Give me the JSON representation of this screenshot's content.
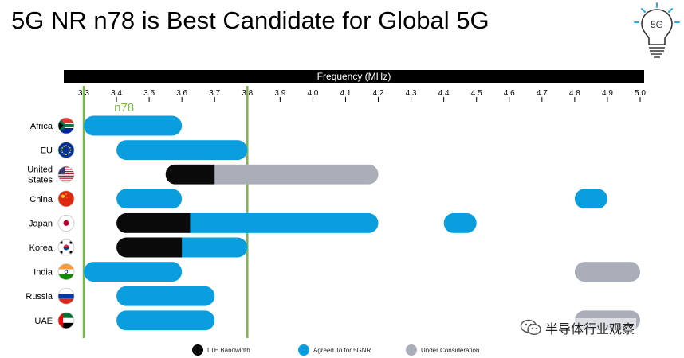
{
  "page_title": "5G NR n78 is Best Candidate for Global 5G",
  "logo_text": "5G",
  "watermark_text": "半导体行业观察",
  "colors": {
    "lte": "#0a0a0a",
    "agreed": "#0a9ede",
    "consideration": "#a9aeb9",
    "n78_line": "#7ab648",
    "axis_bar": "#000000",
    "logo_blue": "#29a9e0"
  },
  "chart_data": {
    "type": "bar",
    "orientation": "horizontal-ranges",
    "title": "",
    "axis_label": "Frequency (MHz)",
    "xlim": [
      3.3,
      5.0
    ],
    "ticks": [
      3.3,
      3.4,
      3.5,
      3.6,
      3.7,
      3.8,
      3.9,
      4.0,
      4.1,
      4.2,
      4.3,
      4.4,
      4.5,
      4.6,
      4.7,
      4.8,
      4.9,
      5.0
    ],
    "tick_labels": [
      "3.3",
      "3.4",
      "3.5",
      "3.6",
      "3.7",
      "3.8",
      "3.9",
      "4.0",
      "4.1",
      "4.2",
      "4.3",
      "4.4",
      "4.5",
      "4.6",
      "4.7",
      "4.8",
      "4.9",
      "5.0"
    ],
    "band_marker": {
      "label": "n78",
      "start": 3.3,
      "end": 3.8
    },
    "legend": [
      {
        "key": "lte",
        "label": "LTE Bandwidth"
      },
      {
        "key": "agreed",
        "label": "Agreed To for 5GNR"
      },
      {
        "key": "consideration",
        "label": "Under Consideration"
      }
    ],
    "legend_position": "bottom",
    "regions": [
      {
        "name": "Africa",
        "label_lines": [
          "Africa"
        ],
        "flag": "south-africa-flag",
        "ranges": [
          {
            "segments": [
              {
                "type": "agreed",
                "start": 3.3,
                "end": 3.6
              }
            ]
          }
        ]
      },
      {
        "name": "EU",
        "label_lines": [
          "EU"
        ],
        "flag": "eu-flag",
        "ranges": [
          {
            "segments": [
              {
                "type": "agreed",
                "start": 3.4,
                "end": 3.8
              }
            ]
          }
        ]
      },
      {
        "name": "United States",
        "label_lines": [
          "United",
          "States"
        ],
        "flag": "us-flag",
        "ranges": [
          {
            "segments": [
              {
                "type": "lte",
                "start": 3.55,
                "end": 3.7
              },
              {
                "type": "consideration",
                "start": 3.7,
                "end": 4.2
              }
            ]
          }
        ]
      },
      {
        "name": "China",
        "label_lines": [
          "China"
        ],
        "flag": "china-flag",
        "ranges": [
          {
            "segments": [
              {
                "type": "agreed",
                "start": 3.4,
                "end": 3.6
              }
            ]
          },
          {
            "segments": [
              {
                "type": "agreed",
                "start": 4.8,
                "end": 4.9
              }
            ]
          }
        ]
      },
      {
        "name": "Japan",
        "label_lines": [
          "Japan"
        ],
        "flag": "japan-flag",
        "ranges": [
          {
            "segments": [
              {
                "type": "lte",
                "start": 3.4,
                "end": 3.625
              },
              {
                "type": "agreed",
                "start": 3.625,
                "end": 4.2
              }
            ]
          },
          {
            "segments": [
              {
                "type": "agreed",
                "start": 4.4,
                "end": 4.5
              }
            ]
          }
        ]
      },
      {
        "name": "Korea",
        "label_lines": [
          "Korea"
        ],
        "flag": "korea-flag",
        "ranges": [
          {
            "segments": [
              {
                "type": "lte",
                "start": 3.4,
                "end": 3.6
              },
              {
                "type": "agreed",
                "start": 3.6,
                "end": 3.8
              }
            ]
          }
        ]
      },
      {
        "name": "India",
        "label_lines": [
          "India"
        ],
        "flag": "india-flag",
        "ranges": [
          {
            "segments": [
              {
                "type": "agreed",
                "start": 3.3,
                "end": 3.6
              }
            ]
          },
          {
            "segments": [
              {
                "type": "consideration",
                "start": 4.8,
                "end": 5.0
              }
            ]
          }
        ]
      },
      {
        "name": "Russia",
        "label_lines": [
          "Russia"
        ],
        "flag": "russia-flag",
        "ranges": [
          {
            "segments": [
              {
                "type": "agreed",
                "start": 3.4,
                "end": 3.7
              }
            ]
          }
        ]
      },
      {
        "name": "UAE",
        "label_lines": [
          "UAE"
        ],
        "flag": "uae-flag",
        "ranges": [
          {
            "segments": [
              {
                "type": "agreed",
                "start": 3.4,
                "end": 3.7
              }
            ]
          },
          {
            "segments": [
              {
                "type": "consideration",
                "start": 4.8,
                "end": 5.0
              }
            ]
          }
        ]
      }
    ]
  }
}
